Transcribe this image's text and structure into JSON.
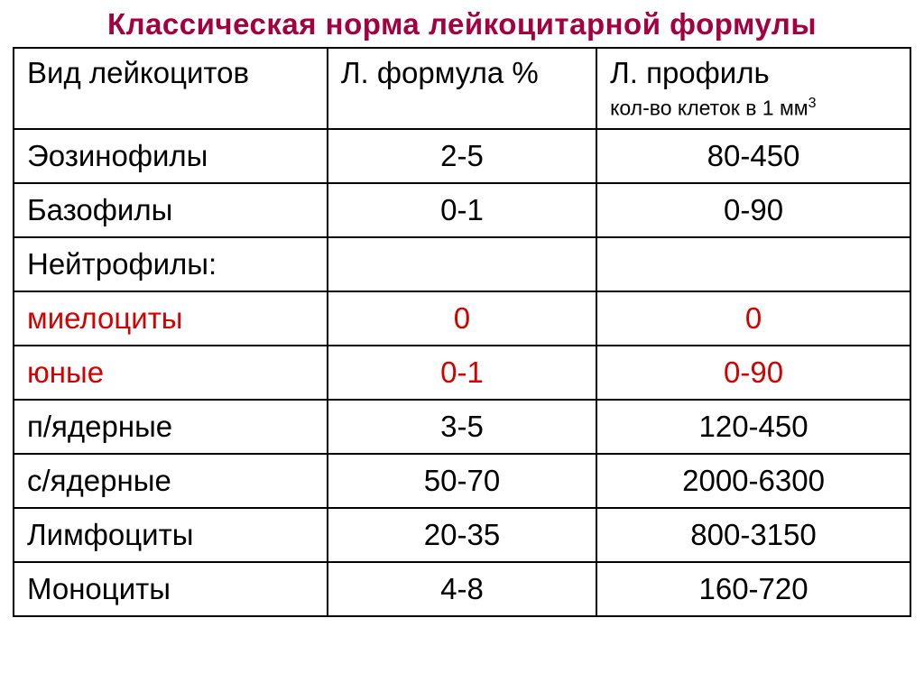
{
  "title": "Классическая норма лейкоцитарной формулы",
  "title_color": "#a3003f",
  "text_color": "#000000",
  "highlight_color": "#d40000",
  "border_color": "#000000",
  "background_color": "#ffffff",
  "columns": [
    {
      "label": "Вид лейкоцитов",
      "sublabel": ""
    },
    {
      "label": "Л. формула %",
      "sublabel": ""
    },
    {
      "label": "Л. профиль",
      "sublabel": "кол-во клеток в 1 мм³"
    }
  ],
  "rows": [
    {
      "cells": [
        "Эозинофилы",
        "2-5",
        "80-450"
      ],
      "highlight": false
    },
    {
      "cells": [
        "Базофилы",
        "0-1",
        "0-90"
      ],
      "highlight": false
    },
    {
      "cells": [
        "Нейтрофилы:",
        "",
        ""
      ],
      "highlight": false
    },
    {
      "cells": [
        "миелоциты",
        "0",
        "0"
      ],
      "highlight": true
    },
    {
      "cells": [
        "юные",
        "0-1",
        "0-90"
      ],
      "highlight": true
    },
    {
      "cells": [
        "п/ядерные",
        "3-5",
        "120-450"
      ],
      "highlight": false
    },
    {
      "cells": [
        "с/ядерные",
        "50-70",
        "2000-6300"
      ],
      "highlight": false
    },
    {
      "cells": [
        "Лимфоциты",
        "20-35",
        "800-3150"
      ],
      "highlight": false
    },
    {
      "cells": [
        "Моноциты",
        "4-8",
        "160-720"
      ],
      "highlight": false
    }
  ],
  "header_row_height": 88,
  "data_row_height": 60,
  "title_fontsize": 33,
  "cell_fontsize": 33,
  "sub_fontsize": 23
}
